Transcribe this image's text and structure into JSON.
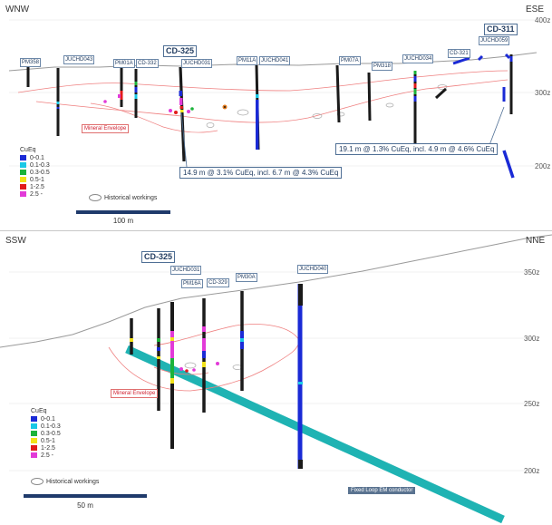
{
  "top": {
    "dir_left": "WNW",
    "dir_right": "ESE",
    "elevations": [
      "400z",
      "300z",
      "200z"
    ],
    "holes": [
      "PM358",
      "JUCHD043",
      "PM01A",
      "CD-332",
      "CD-325",
      "JUCHD031",
      "PM11A",
      "JUCHD041",
      "PM07A",
      "PM318",
      "JUCHD034",
      "CD-321",
      "CD-311",
      "JUCHD059"
    ],
    "callout_left": "14.9 m @ 3.1% CuEq, incl. 6.7 m @ 4.3% CuEq",
    "callout_right": "19.1 m @ 1.3% CuEq, incl. 4.9 m @ 4.6% CuEq",
    "envelope_label": "Mineral Envelope",
    "legend_title": "CuEq",
    "legend": [
      {
        "label": "0-0.1",
        "color": "#1a2ad6"
      },
      {
        "label": "0.1-0.3",
        "color": "#19c8e6"
      },
      {
        "label": "0.3-0.5",
        "color": "#1bb33a"
      },
      {
        "label": "0.5-1",
        "color": "#f2e21a"
      },
      {
        "label": "1-2.5",
        "color": "#e21b1b"
      },
      {
        "label": "2.5 -",
        "color": "#e23ad8"
      }
    ],
    "historical_label": "Historical workings",
    "scale_label": "100  m"
  },
  "bottom": {
    "dir_left": "SSW",
    "dir_right": "NNE",
    "elevations": [
      "350z",
      "300z",
      "250z",
      "200z"
    ],
    "holes": [
      "CD-325",
      "JUCHD031",
      "PM16A",
      "CD-329",
      "PM30A",
      "JUCHD040"
    ],
    "envelope_label": "Mineral Envelope",
    "legend_title": "CuEq",
    "legend": [
      {
        "label": "0-0.1",
        "color": "#1a2ad6"
      },
      {
        "label": "0.1-0.3",
        "color": "#19c8e6"
      },
      {
        "label": "0.3-0.5",
        "color": "#1bb33a"
      },
      {
        "label": "0.5-1",
        "color": "#f2e21a"
      },
      {
        "label": "1-2.5",
        "color": "#e21b1b"
      },
      {
        "label": "2.5 -",
        "color": "#e23ad8"
      }
    ],
    "historical_label": "Historical workings",
    "scale_label": "50 m",
    "em_label": "Fixed Loop EM conductor"
  }
}
